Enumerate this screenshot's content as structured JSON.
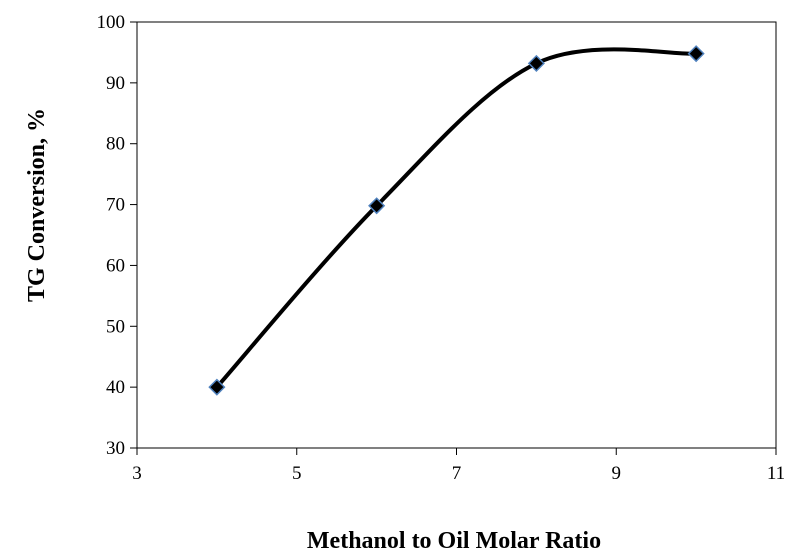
{
  "chart_data": {
    "type": "scatter",
    "xlabel": "Methanol to Oil Molar Ratio",
    "ylabel": "TG Conversion,  %",
    "xlim": [
      3,
      11
    ],
    "ylim": [
      30,
      100
    ],
    "xticks": [
      3,
      5,
      7,
      9,
      11
    ],
    "yticks": [
      30,
      40,
      50,
      60,
      70,
      80,
      90,
      100
    ],
    "grid": false,
    "smoothed_line": true,
    "series": [
      {
        "x": [
          4,
          6,
          8,
          10
        ],
        "y": [
          40,
          69.8,
          93.2,
          94.8
        ],
        "marker": "diamond",
        "marker_fill": "#000000",
        "marker_edge": "#4f81bd",
        "line_color": "#000000"
      }
    ]
  }
}
